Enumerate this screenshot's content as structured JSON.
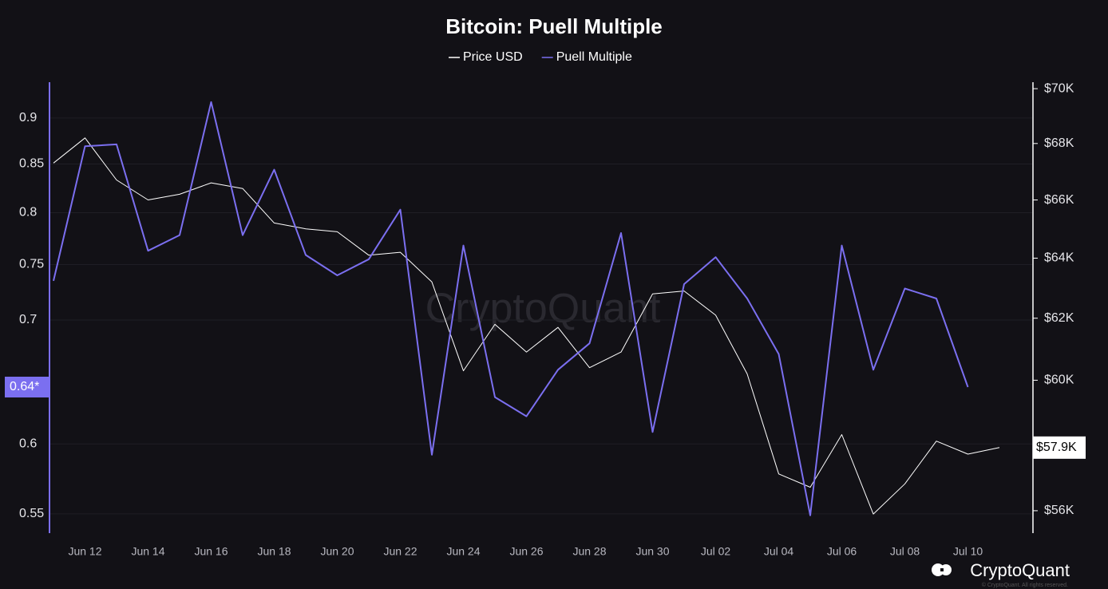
{
  "chart_data": {
    "type": "line",
    "title": "Bitcoin: Puell Multiple",
    "watermark": "CryptoQuant",
    "brand": "CryptoQuant",
    "copyright": "© CryptoQuant. All rights reserved.",
    "categories": [
      null,
      "Jun 12",
      null,
      "Jun 14",
      null,
      "Jun 16",
      null,
      "Jun 18",
      null,
      "Jun 20",
      null,
      "Jun 22",
      null,
      "Jun 24",
      null,
      "Jun 26",
      null,
      "Jun 28",
      null,
      "Jun 30",
      null,
      "Jul 02",
      null,
      "Jul 04",
      null,
      "Jul 06",
      null,
      "Jul 08",
      null,
      "Jul 10",
      null
    ],
    "series": [
      {
        "name": "Price USD",
        "color": "#ffffff",
        "axis": "y2",
        "values": [
          67300,
          68200,
          66700,
          66000,
          66200,
          66600,
          66400,
          65200,
          65000,
          64900,
          64100,
          64200,
          63200,
          60300,
          61800,
          60900,
          61700,
          60400,
          60900,
          62800,
          62900,
          62100,
          60200,
          57100,
          56700,
          58300,
          55900,
          56800,
          58100,
          57700,
          57900
        ]
      },
      {
        "name": "Puell Multiple",
        "color": "#7b6ff0",
        "axis": "y",
        "values": [
          0.735,
          0.869,
          0.871,
          0.763,
          0.778,
          0.918,
          0.778,
          0.844,
          0.759,
          0.74,
          0.755,
          0.803,
          0.592,
          0.768,
          0.636,
          0.621,
          0.658,
          0.68,
          0.78,
          0.609,
          0.732,
          0.757,
          0.719,
          0.671,
          0.549,
          0.768,
          0.658,
          0.728,
          0.719,
          0.644,
          null
        ]
      }
    ],
    "ylim": [
      0.537,
      0.941
    ],
    "yticks": [
      0.55,
      0.6,
      0.7,
      0.75,
      0.8,
      0.85,
      0.9
    ],
    "y2lim": [
      55340,
      70240
    ],
    "y2ticks": [
      {
        "value": 56000,
        "label": "$56K"
      },
      {
        "value": 60000,
        "label": "$60K"
      },
      {
        "value": 62000,
        "label": "$62K"
      },
      {
        "value": 64000,
        "label": "$64K"
      },
      {
        "value": 66000,
        "label": "$66K"
      },
      {
        "value": 68000,
        "label": "$68K"
      },
      {
        "value": 70000,
        "label": "$70K"
      }
    ],
    "log_scale": true,
    "grid": true,
    "current_labels": [
      {
        "value": 0.644,
        "label": "0.64*",
        "axis": "y"
      },
      {
        "value": 57900,
        "label": "$57.9K",
        "axis": "y2"
      }
    ]
  }
}
